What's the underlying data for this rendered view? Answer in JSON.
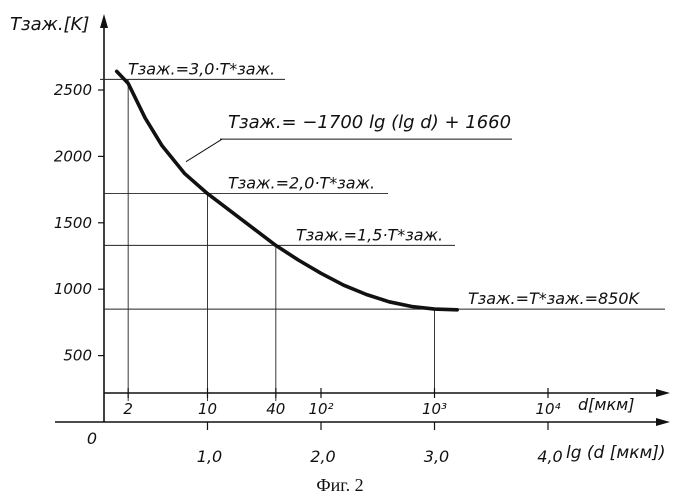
{
  "chart_data": {
    "type": "line",
    "ylabel": "Tзаж.[K]",
    "xlabel": "lg (d [мкм])",
    "x2label": "d[мкм]",
    "xlim": [
      0,
      4.9
    ],
    "ylim": [
      0,
      2800
    ],
    "y_ticks": [
      {
        "value": 500,
        "label": "500"
      },
      {
        "value": 1000,
        "label": "1000"
      },
      {
        "value": 1500,
        "label": "1500"
      },
      {
        "value": 2000,
        "label": "2000"
      },
      {
        "value": 2500,
        "label": "2500"
      }
    ],
    "x_ticks": [
      {
        "value": 0,
        "label": "0"
      },
      {
        "value": 1,
        "label": "1,0"
      },
      {
        "value": 2,
        "label": "2,0"
      },
      {
        "value": 3,
        "label": "3,0"
      },
      {
        "value": 4,
        "label": "4,0"
      }
    ],
    "x2_ticks": [
      {
        "value": 0.301,
        "label": "2"
      },
      {
        "value": 1,
        "label": "10"
      },
      {
        "value": 1.602,
        "label": "40"
      },
      {
        "value": 2,
        "label": "10²"
      },
      {
        "value": 3,
        "label": "10³"
      },
      {
        "value": 4,
        "label": "10⁴"
      }
    ],
    "series": [
      {
        "formula": "Tзаж. = −1700 lg (lg d) + 1660",
        "x": [
          0.2,
          0.301,
          0.45,
          0.6,
          0.8,
          1.0,
          1.2,
          1.4,
          1.602,
          1.8,
          2.0,
          2.2,
          2.4,
          2.6,
          2.8,
          3.0,
          3.2
        ],
        "y": [
          2640,
          2550,
          2290,
          2080,
          1870,
          1720,
          1590,
          1460,
          1330,
          1220,
          1120,
          1030,
          960,
          905,
          870,
          850,
          845
        ]
      }
    ],
    "reference_lines": [
      {
        "y": 2580,
        "x": 0.301,
        "label": "Tзаж.=3,0·T*заж."
      },
      {
        "y": 1720,
        "x": 1.0,
        "label": "Tзаж.=2,0·T*заж."
      },
      {
        "y": 1330,
        "x": 1.602,
        "label": "Tзаж.=1,5·T*заж."
      },
      {
        "y": 850,
        "x": 3.0,
        "label": "Tзаж.=T*заж.=850K"
      }
    ],
    "annotation": {
      "text": "Tзаж.= −1700 lg (lg d) + 1660",
      "x": 1.0,
      "y": 2160
    },
    "caption": "Фиг. 2",
    "grid": false,
    "legend": "none"
  }
}
